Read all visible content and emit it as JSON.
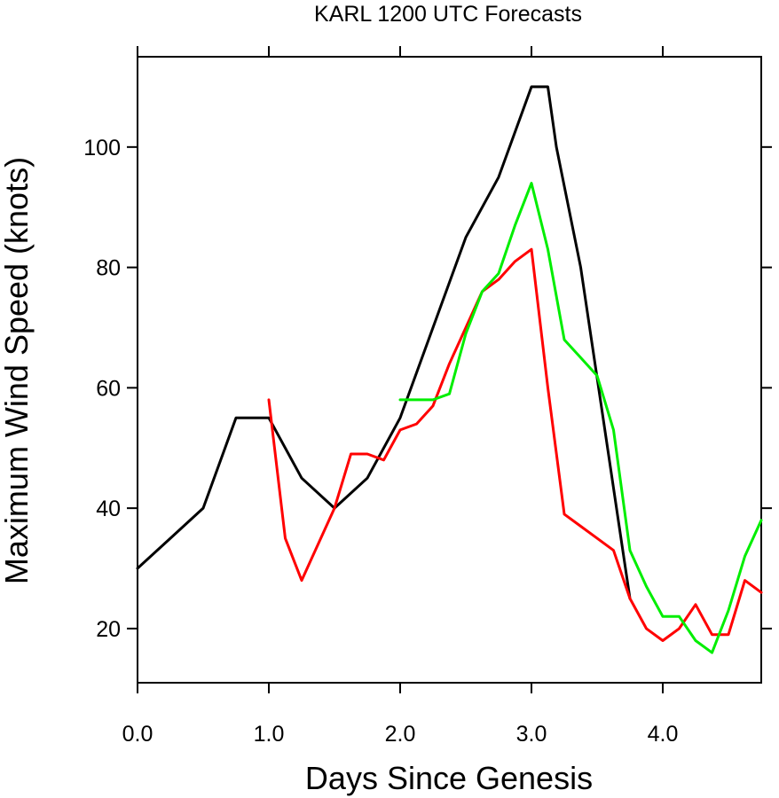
{
  "chart_data": {
    "type": "line",
    "title": "KARL 1200 UTC Forecasts",
    "xlabel": "Days Since Genesis",
    "ylabel": "Maximum Wind Speed (knots)",
    "xlim": [
      0,
      4.75
    ],
    "ylim": [
      11,
      115
    ],
    "x_ticks": [
      0,
      1,
      2,
      3,
      4
    ],
    "x_tick_labels": [
      "0.0",
      "1.0",
      "2.0",
      "3.0",
      "4.0"
    ],
    "y_ticks": [
      20,
      40,
      60,
      80,
      100
    ],
    "y_tick_labels": [
      "20",
      "40",
      "60",
      "80",
      "100"
    ],
    "grid": false,
    "legend": "none",
    "series": [
      {
        "color": "#000000",
        "x": [
          0,
          0.25,
          0.5,
          0.75,
          1.0,
          1.25,
          1.5,
          1.75,
          2.0,
          2.25,
          2.5,
          2.75,
          3.0,
          3.125,
          3.19,
          3.375,
          3.75
        ],
        "y": [
          30,
          35,
          40,
          55,
          55,
          45,
          40,
          45,
          55,
          70,
          85,
          95,
          110,
          110,
          100,
          80,
          25
        ]
      },
      {
        "color": "#ff0000",
        "x": [
          1.0,
          1.125,
          1.25,
          1.5,
          1.625,
          1.75,
          1.875,
          2.0,
          2.125,
          2.25,
          2.375,
          2.5,
          2.625,
          2.75,
          2.875,
          3.0,
          3.125,
          3.25,
          3.375,
          3.5,
          3.625,
          3.75,
          3.875,
          4.0,
          4.125,
          4.25,
          4.375,
          4.5,
          4.625,
          4.75
        ],
        "y": [
          58,
          35,
          28,
          40,
          49,
          49,
          48,
          53,
          54,
          57,
          64,
          70,
          76,
          78,
          81,
          83,
          60,
          39,
          37,
          35,
          33,
          25,
          20,
          18,
          20,
          24,
          19,
          19,
          28,
          26
        ]
      },
      {
        "color": "#00ee00",
        "x": [
          2.0,
          2.125,
          2.25,
          2.375,
          2.5,
          2.625,
          2.75,
          2.875,
          3.0,
          3.125,
          3.25,
          3.375,
          3.5,
          3.625,
          3.75,
          3.875,
          4.0,
          4.125,
          4.25,
          4.375,
          4.5,
          4.625,
          4.75
        ],
        "y": [
          58,
          58,
          58,
          59,
          69,
          76,
          79,
          87,
          94,
          83,
          68,
          65,
          62,
          53,
          33,
          27,
          22,
          22,
          18,
          16,
          23,
          32,
          38
        ]
      }
    ]
  }
}
